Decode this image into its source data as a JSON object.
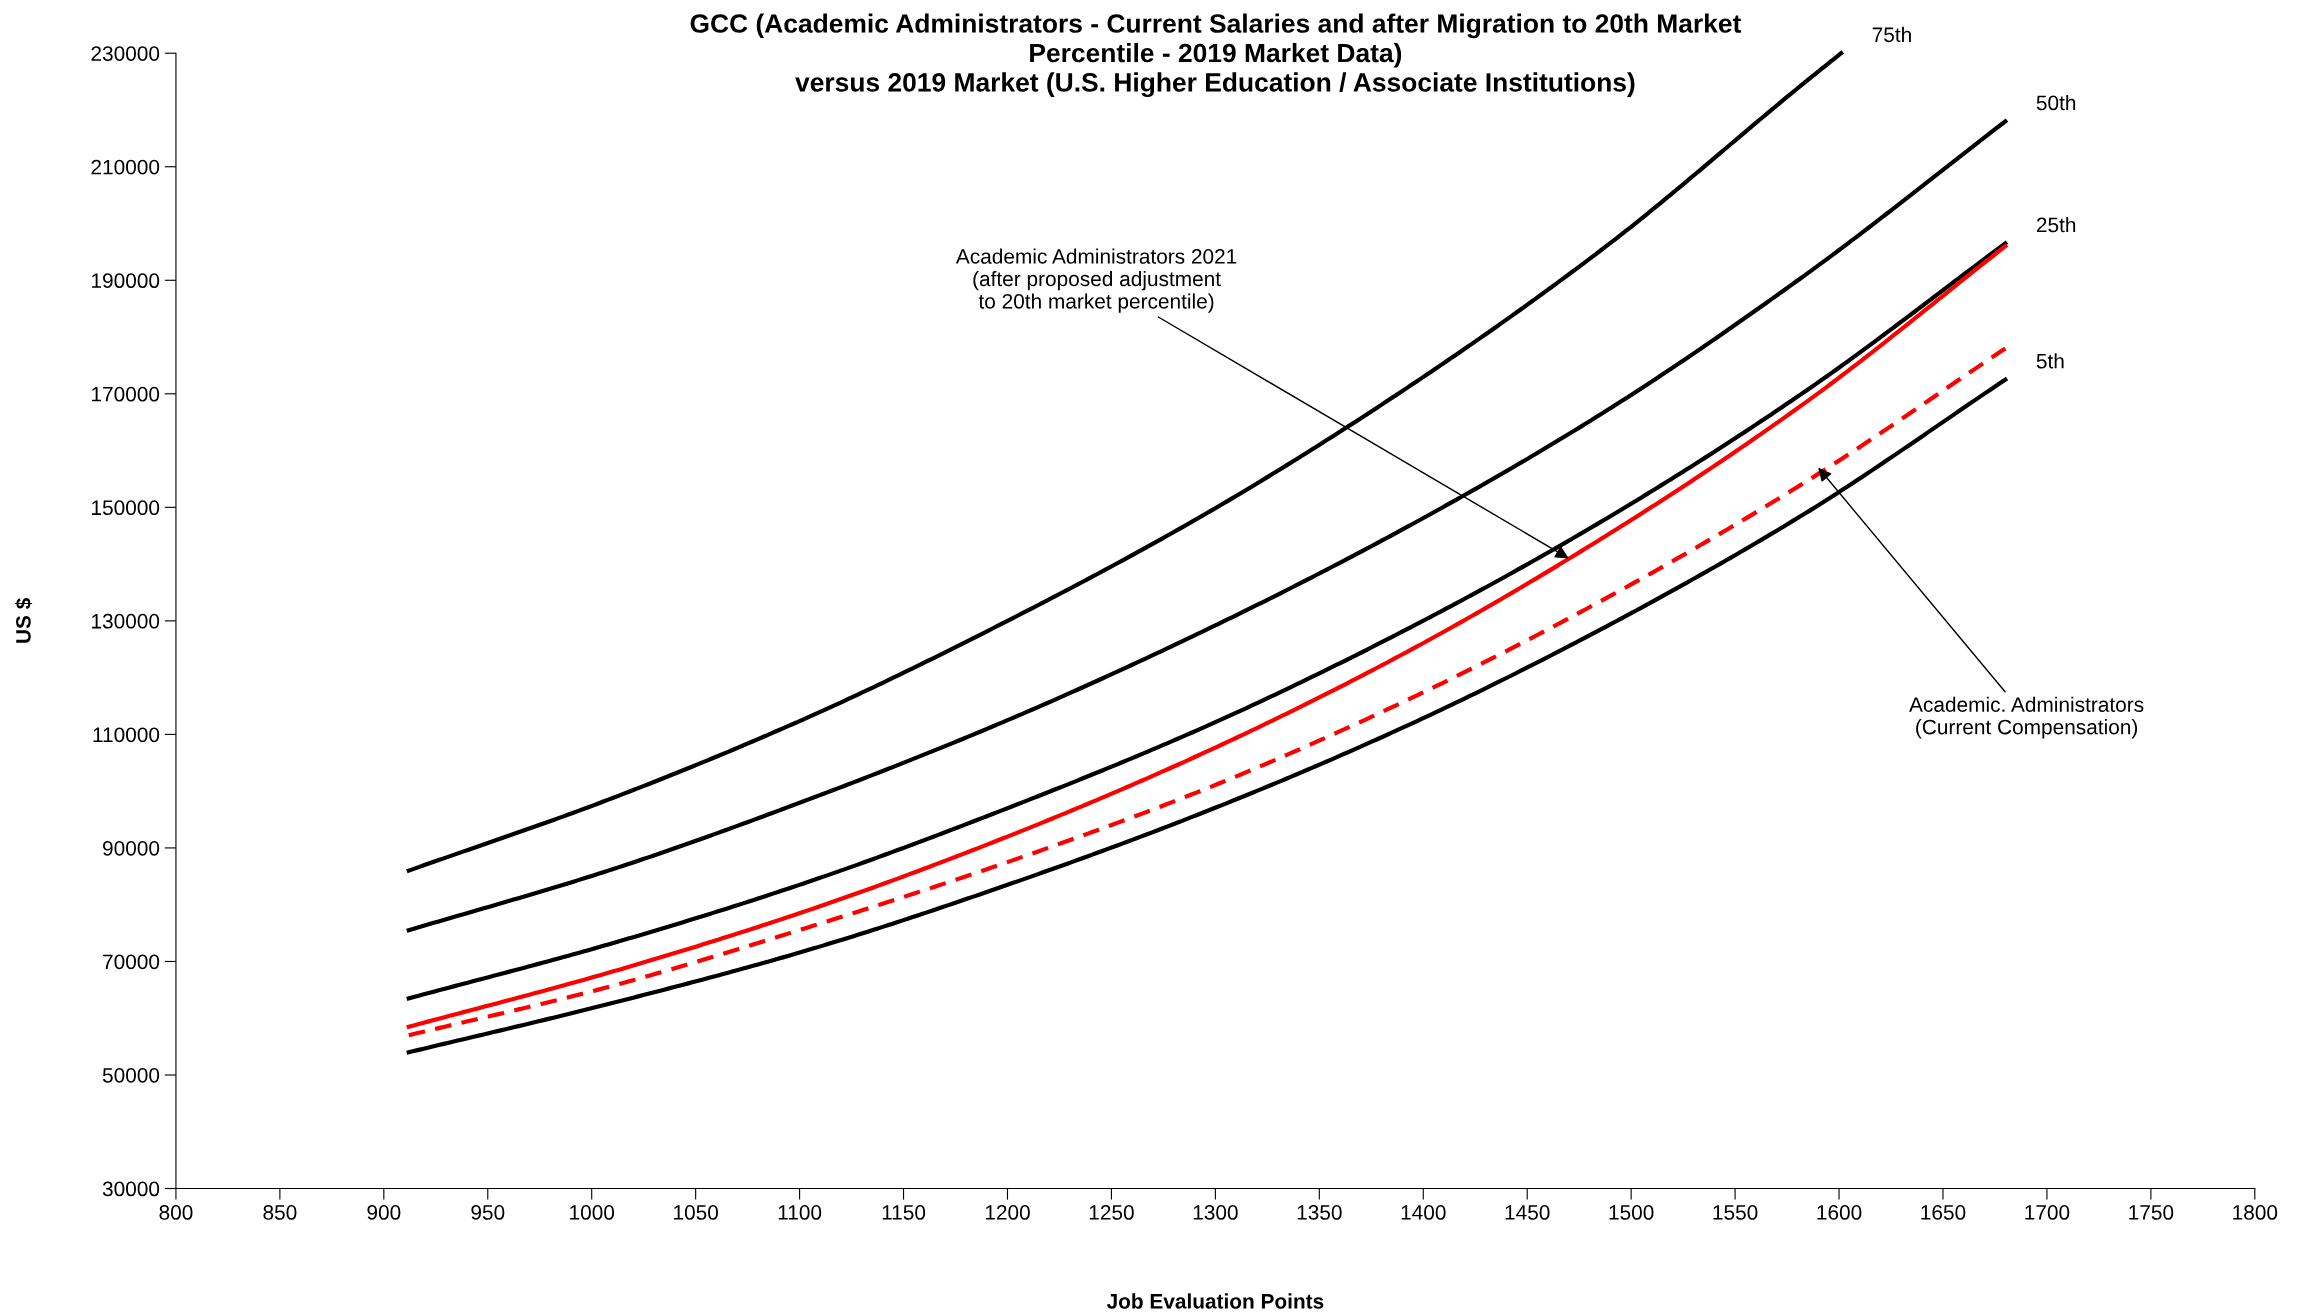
{
  "chart_data": {
    "type": "line",
    "title": "GCC (Academic Administrators - Current Salaries and after Migration to 20th Market\nPercentile - 2019 Market Data)\nversus 2019 Market (U.S. Higher Education / Associate Institutions)",
    "xlabel": "Job Evaluation Points",
    "ylabel": "US $",
    "xlim": [
      800,
      1800
    ],
    "xticks": [
      800,
      850,
      900,
      950,
      1000,
      1050,
      1100,
      1150,
      1200,
      1250,
      1300,
      1350,
      1400,
      1450,
      1500,
      1550,
      1600,
      1650,
      1700,
      1750,
      1800
    ],
    "ylim": [
      30000,
      230000
    ],
    "yticks": [
      30000,
      50000,
      70000,
      90000,
      110000,
      130000,
      150000,
      170000,
      190000,
      210000,
      230000
    ],
    "grid": false,
    "legend": false,
    "marker": "none",
    "series": [
      {
        "name": "75th",
        "color": "#000000",
        "line_style": "solid",
        "x": [
          912,
          1008,
          1104,
          1200,
          1296,
          1392,
          1488,
          1584,
          1601
        ],
        "values": [
          86000,
          98500,
          113000,
          130000,
          149000,
          171000,
          196000,
          225000,
          230000
        ]
      },
      {
        "name": "50th",
        "color": "#000000",
        "line_style": "solid",
        "x": [
          912,
          1008,
          1104,
          1200,
          1296,
          1392,
          1488,
          1584,
          1680
        ],
        "values": [
          75500,
          86000,
          98500,
          112500,
          128500,
          146500,
          167000,
          191000,
          218000
        ]
      },
      {
        "name": "25th",
        "color": "#000000",
        "line_style": "solid",
        "x": [
          912,
          1008,
          1104,
          1200,
          1296,
          1392,
          1488,
          1584,
          1680
        ],
        "values": [
          63500,
          73000,
          84000,
          97000,
          111500,
          128500,
          148000,
          170500,
          196500
        ]
      },
      {
        "name": "5th",
        "color": "#000000",
        "line_style": "solid",
        "x": [
          912,
          1008,
          1104,
          1200,
          1296,
          1392,
          1488,
          1584,
          1680
        ],
        "values": [
          54000,
          62500,
          72000,
          83500,
          96500,
          111500,
          129000,
          149000,
          172500
        ]
      },
      {
        "color": "#ff0000",
        "line_style": "solid",
        "x": [
          912,
          1008,
          1104,
          1200,
          1296,
          1392,
          1488,
          1584,
          1680
        ],
        "values": [
          58500,
          68000,
          79000,
          92000,
          107000,
          124500,
          145000,
          168500,
          196000
        ]
      },
      {
        "color": "#ff0000",
        "line_style": "dashed",
        "x": [
          912,
          1008,
          1104,
          1200,
          1296,
          1392,
          1488,
          1584,
          1680
        ],
        "values": [
          57000,
          65500,
          76000,
          87500,
          100500,
          116000,
          134000,
          154500,
          178000
        ]
      }
    ],
    "annotations": [
      {
        "text": "Academic Administrators 2021\n(after proposed adjustment\nto 20th market percentile)",
        "x": 1470,
        "y": 141000
      },
      {
        "text": "Academic. Administrators\n(Current Compensation)",
        "x": 1590,
        "y": 157000
      }
    ]
  }
}
